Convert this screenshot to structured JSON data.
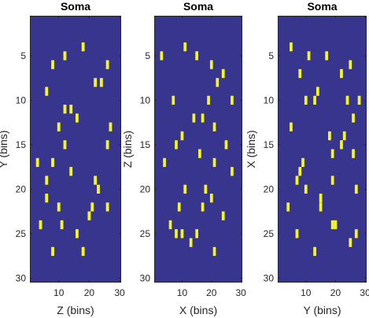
{
  "colors": {
    "background": "#38358f",
    "mark": "#f5f520",
    "axis": "#262626"
  },
  "chart_data": [
    {
      "type": "heatmap",
      "title": "Soma",
      "xlabel": "Z (bins)",
      "ylabel": "Y (bins)",
      "xlim": [
        0.5,
        30.5
      ],
      "ylim": [
        0.5,
        30.5
      ],
      "y_reversed": true,
      "xticks": [
        10,
        20,
        30
      ],
      "yticks": [
        5,
        10,
        15,
        20,
        25,
        30
      ],
      "xtick_labels": [
        "10",
        "20",
        "30"
      ],
      "ytick_labels": [
        "5",
        "10",
        "15",
        "20",
        "25",
        "30"
      ],
      "cells": [
        [
          18,
          4
        ],
        [
          8,
          6
        ],
        [
          12,
          5
        ],
        [
          26,
          6
        ],
        [
          22,
          8
        ],
        [
          24,
          8
        ],
        [
          6,
          9
        ],
        [
          12,
          11
        ],
        [
          14,
          11
        ],
        [
          16,
          12
        ],
        [
          10,
          13
        ],
        [
          27,
          13
        ],
        [
          12,
          15
        ],
        [
          26,
          15
        ],
        [
          8,
          17
        ],
        [
          3,
          17
        ],
        [
          14,
          18
        ],
        [
          6,
          19
        ],
        [
          22,
          19
        ],
        [
          23,
          20
        ],
        [
          6,
          21
        ],
        [
          10,
          22
        ],
        [
          21,
          22
        ],
        [
          26,
          22
        ],
        [
          20,
          23
        ],
        [
          4,
          24
        ],
        [
          11,
          24
        ],
        [
          16,
          25
        ],
        [
          8,
          27
        ],
        [
          18,
          27
        ]
      ]
    },
    {
      "type": "heatmap",
      "title": "Soma",
      "xlabel": "X (bins)",
      "ylabel": "Z (bins)",
      "xlim": [
        0.5,
        30.5
      ],
      "ylim": [
        0.5,
        30.5
      ],
      "y_reversed": true,
      "xticks": [
        10,
        20,
        30
      ],
      "yticks": [
        5,
        10,
        15,
        20,
        25,
        30
      ],
      "xtick_labels": [
        "10",
        "20",
        "30"
      ],
      "ytick_labels": [
        "5",
        "10",
        "15",
        "20",
        "25",
        "30"
      ],
      "cells": [
        [
          3,
          5
        ],
        [
          11,
          4
        ],
        [
          15,
          5
        ],
        [
          20,
          6
        ],
        [
          24,
          7
        ],
        [
          22,
          8
        ],
        [
          7,
          10
        ],
        [
          19,
          10
        ],
        [
          27,
          10
        ],
        [
          14,
          12
        ],
        [
          17,
          12
        ],
        [
          21,
          13
        ],
        [
          10,
          14
        ],
        [
          8,
          15
        ],
        [
          25,
          15
        ],
        [
          16,
          16
        ],
        [
          4,
          17
        ],
        [
          21,
          17
        ],
        [
          27,
          18
        ],
        [
          11,
          20
        ],
        [
          18,
          20
        ],
        [
          20,
          21
        ],
        [
          9,
          22
        ],
        [
          17,
          22
        ],
        [
          24,
          23
        ],
        [
          6,
          24
        ],
        [
          8,
          25
        ],
        [
          10,
          25
        ],
        [
          15,
          25
        ],
        [
          13,
          26
        ],
        [
          21,
          27
        ]
      ]
    },
    {
      "type": "heatmap",
      "title": "Soma",
      "xlabel": "Y (bins)",
      "ylabel": "X (bins)",
      "xlim": [
        0.5,
        30.5
      ],
      "ylim": [
        0.5,
        30.5
      ],
      "y_reversed": true,
      "xticks": [
        10,
        20,
        30
      ],
      "yticks": [
        5,
        10,
        15,
        20,
        25,
        30
      ],
      "xtick_labels": [
        "10",
        "20",
        "30"
      ],
      "ytick_labels": [
        "5",
        "10",
        "15",
        "20",
        "25",
        "30"
      ],
      "cells": [
        [
          5,
          4
        ],
        [
          11,
          5
        ],
        [
          17,
          5
        ],
        [
          25,
          6
        ],
        [
          8,
          7
        ],
        [
          22,
          7
        ],
        [
          14,
          9
        ],
        [
          10,
          10
        ],
        [
          13,
          10
        ],
        [
          24,
          10
        ],
        [
          28,
          10
        ],
        [
          26,
          12
        ],
        [
          5,
          13
        ],
        [
          18,
          14
        ],
        [
          23,
          14
        ],
        [
          22,
          15
        ],
        [
          19,
          16
        ],
        [
          26,
          16
        ],
        [
          9,
          17
        ],
        [
          8,
          18
        ],
        [
          7,
          19
        ],
        [
          19,
          19
        ],
        [
          10,
          20
        ],
        [
          27,
          20
        ],
        [
          15,
          21
        ],
        [
          15,
          22
        ],
        [
          4,
          22
        ],
        [
          19,
          24
        ],
        [
          20,
          24
        ],
        [
          7,
          25
        ],
        [
          27,
          25
        ],
        [
          25,
          26
        ],
        [
          13,
          27
        ]
      ]
    }
  ]
}
